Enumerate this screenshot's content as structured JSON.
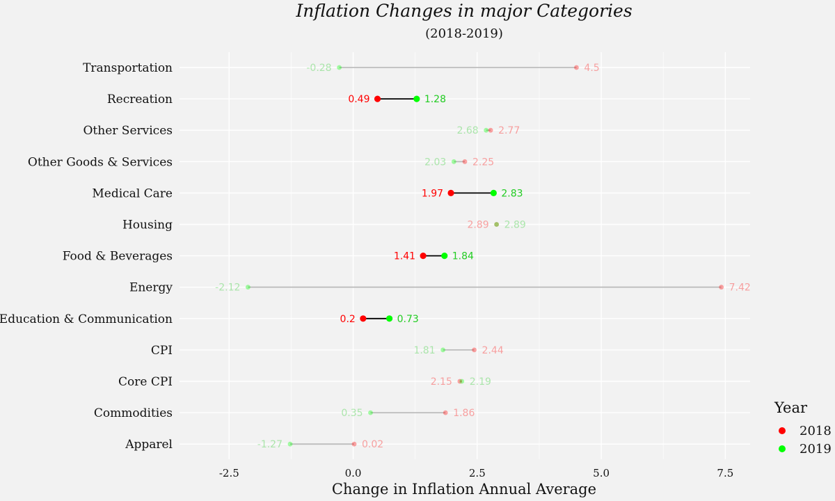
{
  "chart_data": {
    "type": "dumbbell",
    "title": "Inflation Changes in major Categories",
    "subtitle": "(2018-2019)",
    "xlabel": "Change in Inflation Annual Average",
    "ylabel": "",
    "xlim": [
      -3.5,
      8.0
    ],
    "xticks": [
      -2.5,
      0.0,
      2.5,
      5.0,
      7.5
    ],
    "xtick_labels": [
      "-2.5",
      "0.0",
      "2.5",
      "5.0",
      "7.5"
    ],
    "grid": true,
    "legend": {
      "title": "Year",
      "position": "right",
      "entries": [
        {
          "label": "2018",
          "color": "#ff0000"
        },
        {
          "label": "2019",
          "color": "#00ff00"
        }
      ]
    },
    "colors": {
      "y2018": "#ff0000",
      "y2019": "#00ff00",
      "label2018": "#ff0000",
      "label2019": "#22cc22",
      "segment": "#000000",
      "background": "#f2f2f2",
      "grid": "#ffffff"
    },
    "categories": [
      {
        "name": "Transportation",
        "y2018": 4.5,
        "y2019": -0.28,
        "label2018": "4.5",
        "label2019": "-0.28",
        "highlight": false
      },
      {
        "name": "Recreation",
        "y2018": 0.49,
        "y2019": 1.28,
        "label2018": "0.49",
        "label2019": "1.28",
        "highlight": true
      },
      {
        "name": "Other Services",
        "y2018": 2.77,
        "y2019": 2.68,
        "label2018": "2.77",
        "label2019": "2.68",
        "highlight": false
      },
      {
        "name": "Other Goods & Services",
        "y2018": 2.25,
        "y2019": 2.03,
        "label2018": "2.25",
        "label2019": "2.03",
        "highlight": false
      },
      {
        "name": "Medical Care",
        "y2018": 1.97,
        "y2019": 2.83,
        "label2018": "1.97",
        "label2019": "2.83",
        "highlight": true
      },
      {
        "name": "Housing",
        "y2018": 2.89,
        "y2019": 2.89,
        "label2018": "2.89",
        "label2019": "2.89",
        "highlight": false
      },
      {
        "name": "Food & Beverages",
        "y2018": 1.41,
        "y2019": 1.84,
        "label2018": "1.41",
        "label2019": "1.84",
        "highlight": true
      },
      {
        "name": "Energy",
        "y2018": 7.42,
        "y2019": -2.12,
        "label2018": "7.42",
        "label2019": "-2.12",
        "highlight": false
      },
      {
        "name": "Education & Communication",
        "y2018": 0.2,
        "y2019": 0.73,
        "label2018": "0.2",
        "label2019": "0.73",
        "highlight": true
      },
      {
        "name": "CPI",
        "y2018": 2.44,
        "y2019": 1.81,
        "label2018": "2.44",
        "label2019": "1.81",
        "highlight": false
      },
      {
        "name": "Core CPI",
        "y2018": 2.15,
        "y2019": 2.19,
        "label2018": "2.15",
        "label2019": "2.19",
        "highlight": false
      },
      {
        "name": "Commodities",
        "y2018": 1.86,
        "y2019": 0.35,
        "label2018": "1.86",
        "label2019": "0.35",
        "highlight": false
      },
      {
        "name": "Apparel",
        "y2018": 0.02,
        "y2019": -1.27,
        "label2018": "0.02",
        "label2019": "-1.27",
        "highlight": false
      }
    ]
  }
}
